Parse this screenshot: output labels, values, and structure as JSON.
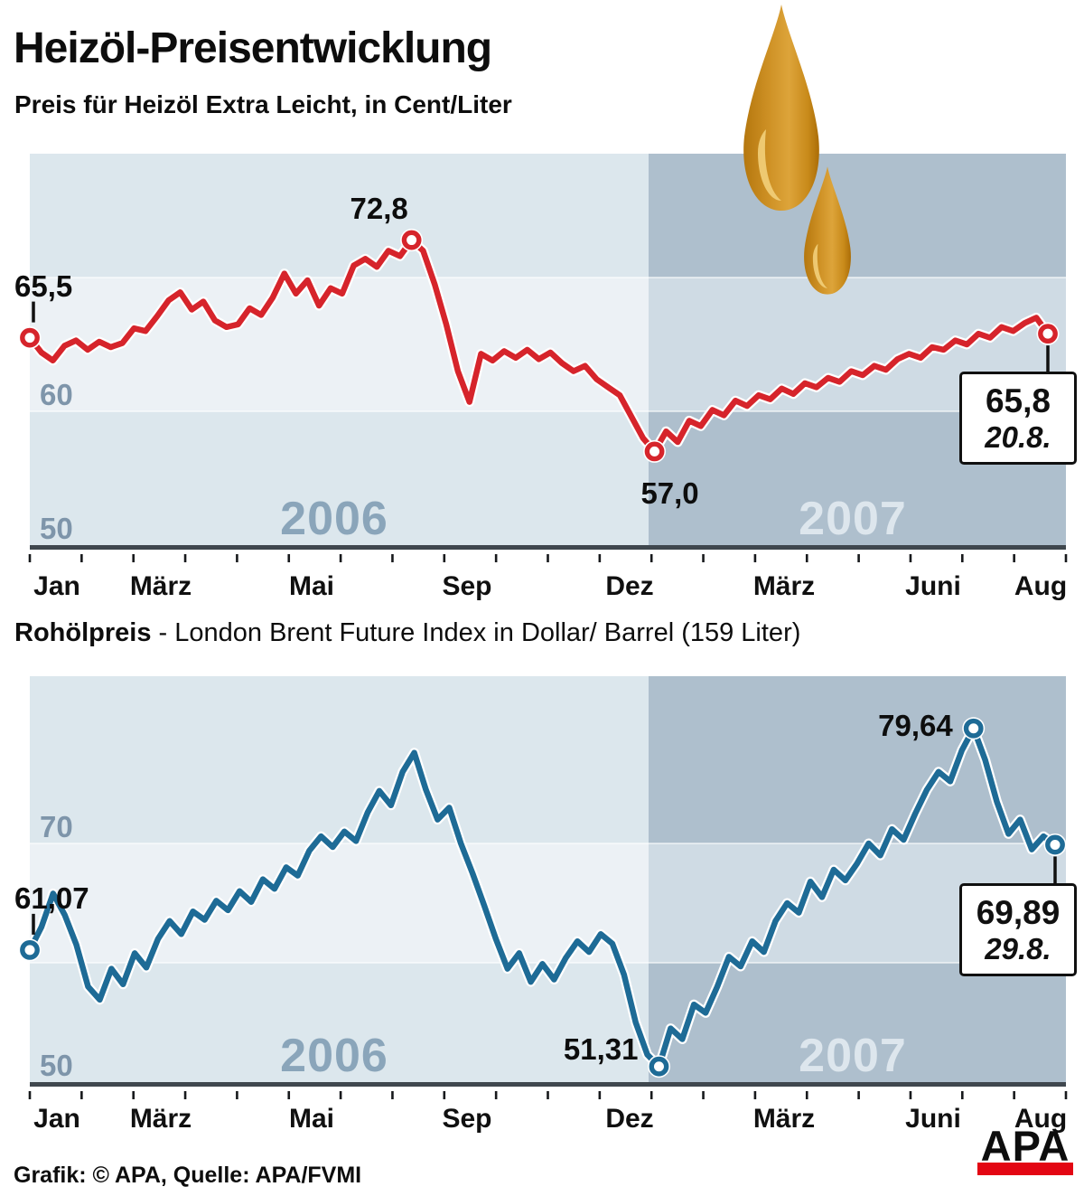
{
  "header": {
    "title": "Heizöl-Preisentwicklung",
    "subtitle": "Preis für Heizöl Extra Leicht, in Cent/Liter"
  },
  "section2_label": {
    "bold": "Rohölpreis",
    "rest": " - London Brent Future Index in Dollar/ Barrel (159 Liter)"
  },
  "axis": {
    "month_labels": [
      "Jan",
      "März",
      "Mai",
      "Sep",
      "Dez",
      "März",
      "Juni",
      "Aug"
    ],
    "year_labels": [
      "2006",
      "2007"
    ],
    "tick_count": 21
  },
  "footer": {
    "credit": "Grafik: © APA, Quelle: APA/FVMI",
    "logo": "APA"
  },
  "colors": {
    "line_heizoel": "#d6242b",
    "line_brent": "#1e6b96",
    "band_2006": "#dce7ed",
    "band_2006_light": "#ecf1f5",
    "band_2007": "#aebfcd",
    "band_2007_light": "#cfdbe4",
    "year_2006_text": "#8aa5ba",
    "year_2007_text": "#dde6ed",
    "y_label_text": "#7e95aa",
    "axis_bar": "#3f474e",
    "tick": "#17191c",
    "apa_red": "#e30613",
    "drop_gold": "#d89b2b"
  },
  "chart_data": [
    {
      "type": "line",
      "name": "heizoel",
      "title": "Preis für Heizöl Extra Leicht, in Cent/Liter",
      "unit": "Cent/Liter",
      "x_range": [
        "Jan 2006",
        "Aug 2007"
      ],
      "x_tick_labels": [
        "Jan",
        "März",
        "Mai",
        "Sep",
        "Dez",
        "März",
        "Juni",
        "Aug"
      ],
      "ylim": [
        50,
        80
      ],
      "y_axis_labels": [
        {
          "value": 60,
          "label": "60"
        },
        {
          "value": 50,
          "label": "50"
        }
      ],
      "grid": "banded",
      "legend": "none",
      "values": [
        65.5,
        64.4,
        63.8,
        64.9,
        65.3,
        64.6,
        65.2,
        64.8,
        65.1,
        66.2,
        66.0,
        67.1,
        68.3,
        68.9,
        67.6,
        68.2,
        66.8,
        66.3,
        66.5,
        67.7,
        67.2,
        68.5,
        70.3,
        68.8,
        69.8,
        67.9,
        69.2,
        68.8,
        70.9,
        71.4,
        70.8,
        72.0,
        71.6,
        72.8,
        72.0,
        69.5,
        66.5,
        63.0,
        60.7,
        64.3,
        63.8,
        64.5,
        64.0,
        64.6,
        63.9,
        64.4,
        63.6,
        63.0,
        63.4,
        62.4,
        61.8,
        61.2,
        59.6,
        58.0,
        57.0,
        58.5,
        57.7,
        59.3,
        58.9,
        60.1,
        59.7,
        60.8,
        60.4,
        61.2,
        60.9,
        61.7,
        61.3,
        62.1,
        61.8,
        62.5,
        62.2,
        63.0,
        62.7,
        63.4,
        63.1,
        63.9,
        64.3,
        64.0,
        64.8,
        64.6,
        65.3,
        65.0,
        65.8,
        65.5,
        66.3,
        66.0,
        66.6,
        67.0,
        65.8
      ],
      "annotations": [
        {
          "index": 0,
          "value": 65.5,
          "label": "65,5",
          "placement": "start"
        },
        {
          "index": 33,
          "value": 72.8,
          "label": "72,8",
          "placement": "above"
        },
        {
          "index": 54,
          "value": 57.0,
          "label": "57,0",
          "placement": "below"
        },
        {
          "index": 88,
          "value": 65.8,
          "label": "65,8",
          "date": "20.8.",
          "placement": "box"
        }
      ]
    },
    {
      "type": "line",
      "name": "brent",
      "title": "Rohölpreis - London Brent Future Index in Dollar/ Barrel (159 Liter)",
      "unit": "Dollar/Barrel",
      "x_range": [
        "Jan 2006",
        "Aug 2007"
      ],
      "x_tick_labels": [
        "Jan",
        "März",
        "Mai",
        "Sep",
        "Dez",
        "März",
        "Juni",
        "Aug"
      ],
      "ylim": [
        50,
        85
      ],
      "y_axis_labels": [
        {
          "value": 70,
          "label": "70"
        },
        {
          "value": 50,
          "label": "50"
        }
      ],
      "grid": "banded",
      "legend": "none",
      "values": [
        61.07,
        63.0,
        65.8,
        64.0,
        61.5,
        58.0,
        56.9,
        59.5,
        58.2,
        60.8,
        59.6,
        62.0,
        63.5,
        62.4,
        64.3,
        63.6,
        65.2,
        64.4,
        66.0,
        65.1,
        67.0,
        66.2,
        68.0,
        67.3,
        69.4,
        70.6,
        69.7,
        71.0,
        70.2,
        72.6,
        74.4,
        73.2,
        76.0,
        77.6,
        74.5,
        72.0,
        73.0,
        70.0,
        67.5,
        64.8,
        62.0,
        59.5,
        60.8,
        58.4,
        59.9,
        58.6,
        60.4,
        61.8,
        60.9,
        62.4,
        61.6,
        59.0,
        55.0,
        52.3,
        51.31,
        54.5,
        53.6,
        56.5,
        55.8,
        58.0,
        60.5,
        59.7,
        61.8,
        60.9,
        63.5,
        65.0,
        64.2,
        66.8,
        65.5,
        67.8,
        66.9,
        68.3,
        70.0,
        69.0,
        71.2,
        70.3,
        72.5,
        74.5,
        76.0,
        75.2,
        77.8,
        79.64,
        77.0,
        73.5,
        70.8,
        72.0,
        69.5,
        70.6,
        69.89
      ],
      "annotations": [
        {
          "index": 0,
          "value": 61.07,
          "label": "61,07",
          "placement": "start"
        },
        {
          "index": 54,
          "value": 51.31,
          "label": "51,31",
          "placement": "left"
        },
        {
          "index": 81,
          "value": 79.64,
          "label": "79,64",
          "placement": "left2"
        },
        {
          "index": 88,
          "value": 69.89,
          "label": "69,89",
          "date": "29.8.",
          "placement": "box"
        }
      ]
    }
  ]
}
